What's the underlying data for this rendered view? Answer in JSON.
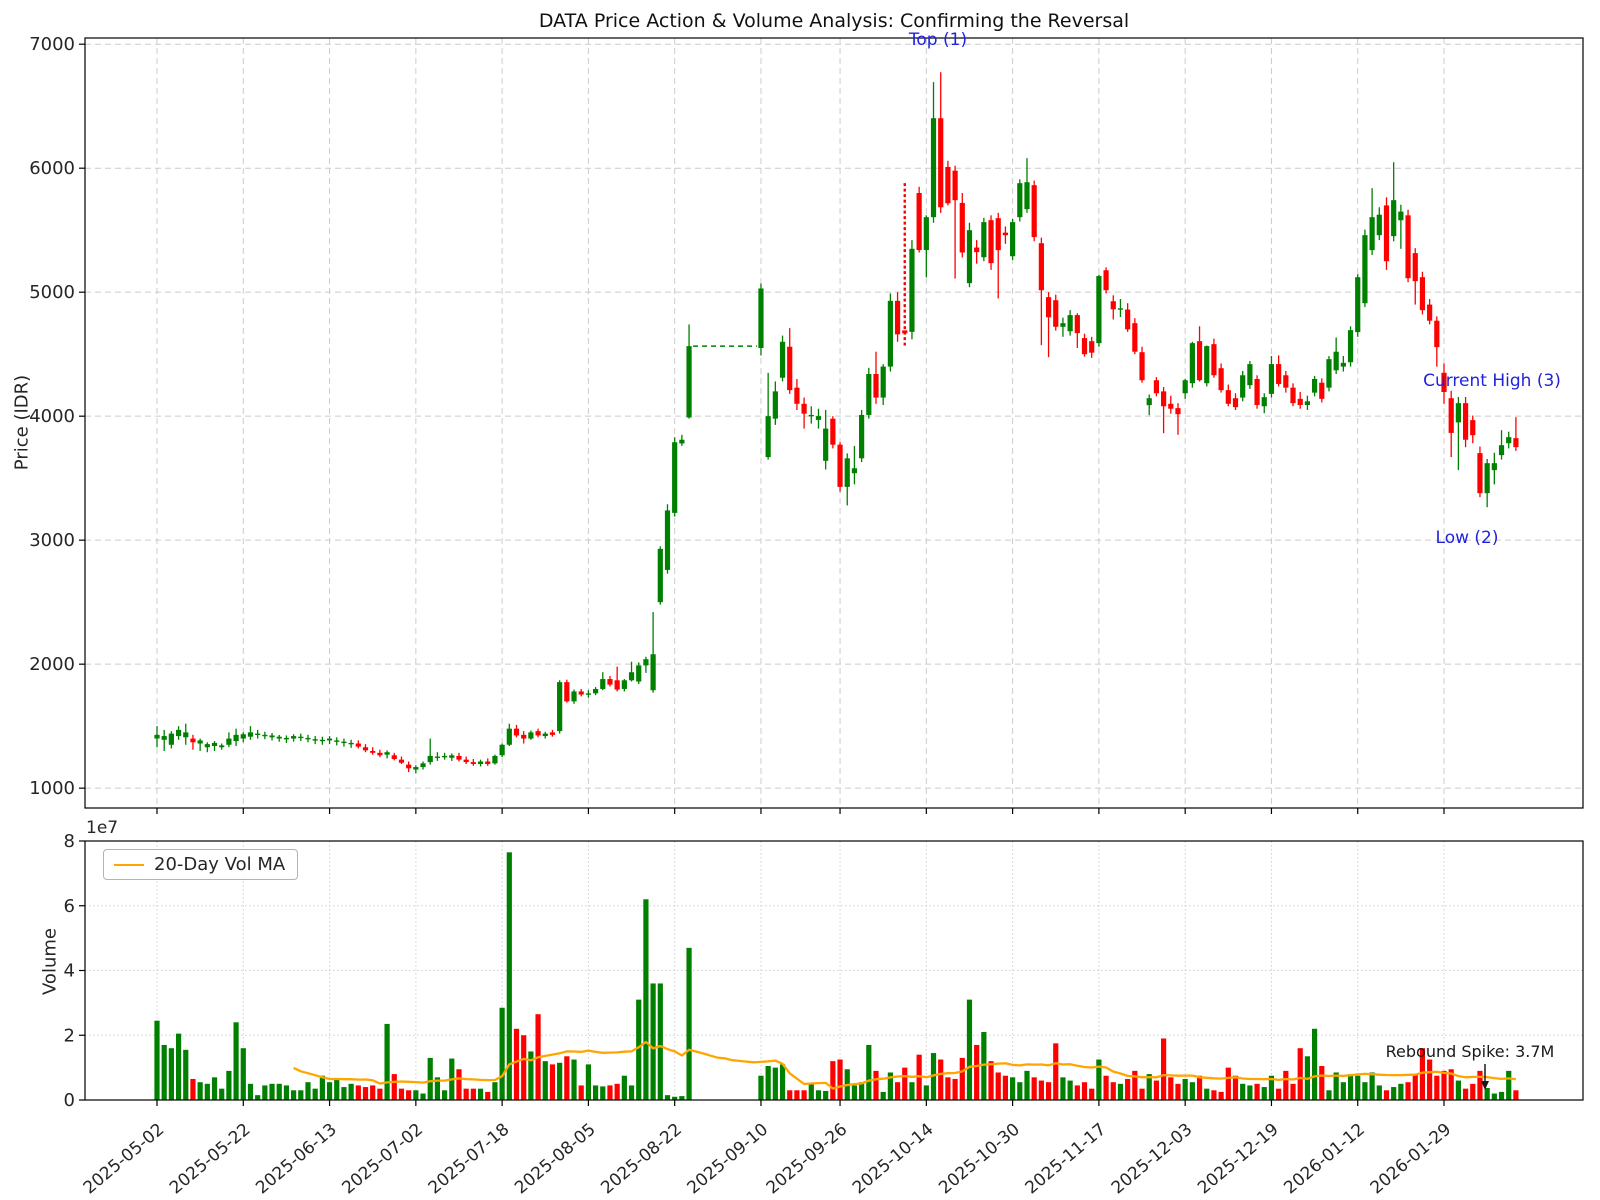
{
  "chart": {
    "title": "DATA Price Action & Volume Analysis: Confirming the Reversal",
    "price_axis": {
      "label": "Price (IDR)",
      "ticks": [
        1000,
        2000,
        3000,
        4000,
        5000,
        6000,
        7000
      ]
    },
    "volume_axis": {
      "label": "Volume",
      "ticks": [
        0,
        2,
        4,
        6,
        8
      ],
      "offset_label": "1e7"
    },
    "x_axis": {
      "tick_labels": [
        "2025-05-02",
        "2025-05-22",
        "2025-06-13",
        "2025-07-02",
        "2025-07-18",
        "2025-08-05",
        "2025-08-22",
        "2025-09-10",
        "2025-09-26",
        "2025-10-14",
        "2025-10-30",
        "2025-11-17",
        "2025-12-03",
        "2025-12-19",
        "2026-01-12",
        "2026-01-29"
      ],
      "tick_indices": [
        0,
        12,
        24,
        36,
        48,
        60,
        72,
        84,
        95,
        107,
        119,
        131,
        143,
        155,
        167,
        179
      ]
    },
    "legend": {
      "label": "20-Day Vol MA"
    },
    "annotations": [
      {
        "id": "top",
        "text": "Top (1)"
      },
      {
        "id": "current-high",
        "text": "Current High (3)"
      },
      {
        "id": "low",
        "text": "Low (2)"
      },
      {
        "id": "rebound",
        "text": "Rebound Spike: 3.7M"
      }
    ],
    "colors": {
      "up": "#008000",
      "down": "#ff0000",
      "volume_ma": "#ffa500",
      "annotation_blue": "#2222dd",
      "text": "#262626",
      "grid": "#cccccc",
      "grid_dotted": "#cfcfcf",
      "spine": "#000000"
    }
  },
  "chart_data": {
    "type": "candlestick+volume",
    "title": "DATA Price Action & Volume Analysis: Confirming the Reversal",
    "ylabel_price": "Price (IDR)",
    "ylabel_volume": "Volume",
    "ylim_price": [
      840,
      7050
    ],
    "ylim_volume_1e7": [
      0,
      8
    ],
    "ma_window": 20,
    "suspension": {
      "from_index": 75,
      "to_index": 83,
      "price": 4565
    },
    "dashed_candle_index": 104,
    "ohlc": [
      [
        1400,
        1500,
        1330,
        1430
      ],
      [
        1390,
        1470,
        1300,
        1420
      ],
      [
        1350,
        1460,
        1320,
        1440
      ],
      [
        1420,
        1500,
        1390,
        1470
      ],
      [
        1410,
        1520,
        1350,
        1450
      ],
      [
        1400,
        1430,
        1310,
        1370
      ],
      [
        1360,
        1400,
        1300,
        1385
      ],
      [
        1330,
        1370,
        1290,
        1355
      ],
      [
        1340,
        1380,
        1300,
        1365
      ],
      [
        1330,
        1360,
        1310,
        1345
      ],
      [
        1350,
        1450,
        1330,
        1400
      ],
      [
        1380,
        1480,
        1340,
        1430
      ],
      [
        1400,
        1450,
        1370,
        1435
      ],
      [
        1415,
        1500,
        1390,
        1450
      ],
      [
        1430,
        1470,
        1400,
        1440
      ],
      [
        1420,
        1455,
        1395,
        1430
      ],
      [
        1410,
        1445,
        1385,
        1425
      ],
      [
        1400,
        1430,
        1375,
        1415
      ],
      [
        1395,
        1425,
        1365,
        1405
      ],
      [
        1400,
        1435,
        1375,
        1420
      ],
      [
        1405,
        1440,
        1380,
        1415
      ],
      [
        1395,
        1430,
        1370,
        1405
      ],
      [
        1385,
        1420,
        1355,
        1395
      ],
      [
        1380,
        1415,
        1350,
        1390
      ],
      [
        1385,
        1420,
        1355,
        1400
      ],
      [
        1375,
        1410,
        1345,
        1385
      ],
      [
        1365,
        1400,
        1335,
        1375
      ],
      [
        1355,
        1390,
        1325,
        1365
      ],
      [
        1360,
        1385,
        1320,
        1335
      ],
      [
        1330,
        1355,
        1290,
        1305
      ],
      [
        1300,
        1330,
        1270,
        1285
      ],
      [
        1285,
        1310,
        1250,
        1265
      ],
      [
        1270,
        1305,
        1240,
        1290
      ],
      [
        1265,
        1285,
        1225,
        1235
      ],
      [
        1230,
        1255,
        1195,
        1205
      ],
      [
        1190,
        1215,
        1130,
        1160
      ],
      [
        1150,
        1185,
        1120,
        1170
      ],
      [
        1170,
        1215,
        1150,
        1200
      ],
      [
        1210,
        1400,
        1190,
        1260
      ],
      [
        1250,
        1290,
        1220,
        1255
      ],
      [
        1255,
        1285,
        1230,
        1260
      ],
      [
        1245,
        1280,
        1220,
        1265
      ],
      [
        1260,
        1285,
        1215,
        1230
      ],
      [
        1230,
        1255,
        1195,
        1210
      ],
      [
        1210,
        1235,
        1180,
        1195
      ],
      [
        1195,
        1230,
        1175,
        1215
      ],
      [
        1215,
        1240,
        1180,
        1195
      ],
      [
        1200,
        1270,
        1190,
        1260
      ],
      [
        1265,
        1360,
        1250,
        1350
      ],
      [
        1350,
        1520,
        1340,
        1480
      ],
      [
        1480,
        1510,
        1410,
        1425
      ],
      [
        1430,
        1460,
        1360,
        1400
      ],
      [
        1400,
        1465,
        1390,
        1450
      ],
      [
        1460,
        1480,
        1410,
        1425
      ],
      [
        1420,
        1455,
        1400,
        1440
      ],
      [
        1450,
        1470,
        1415,
        1430
      ],
      [
        1460,
        1870,
        1440,
        1855
      ],
      [
        1855,
        1875,
        1690,
        1700
      ],
      [
        1700,
        1795,
        1680,
        1780
      ],
      [
        1780,
        1800,
        1740,
        1755
      ],
      [
        1760,
        1790,
        1730,
        1765
      ],
      [
        1765,
        1815,
        1750,
        1800
      ],
      [
        1800,
        1935,
        1790,
        1880
      ],
      [
        1880,
        1905,
        1820,
        1835
      ],
      [
        1870,
        1980,
        1780,
        1795
      ],
      [
        1800,
        1880,
        1780,
        1870
      ],
      [
        1870,
        2020,
        1860,
        1935
      ],
      [
        1860,
        2015,
        1840,
        1990
      ],
      [
        1990,
        2060,
        1930,
        2040
      ],
      [
        1790,
        2420,
        1770,
        2080
      ],
      [
        2500,
        2950,
        2480,
        2930
      ],
      [
        2760,
        3290,
        2730,
        3240
      ],
      [
        3220,
        3830,
        3190,
        3790
      ],
      [
        3780,
        3850,
        3760,
        3810
      ],
      [
        3990,
        4740,
        3980,
        4565
      ],
      null,
      null,
      null,
      null,
      null,
      null,
      null,
      null,
      null,
      [
        4550,
        5070,
        4490,
        5030
      ],
      [
        3670,
        4350,
        3650,
        4000
      ],
      [
        3980,
        4280,
        3930,
        4200
      ],
      [
        4310,
        4650,
        4280,
        4600
      ],
      [
        4560,
        4710,
        4180,
        4210
      ],
      [
        4230,
        4300,
        4050,
        4100
      ],
      [
        4100,
        4150,
        3900,
        4020
      ],
      [
        4000,
        4080,
        3940,
        4010
      ],
      [
        3970,
        4060,
        3900,
        4000
      ],
      [
        3640,
        4050,
        3570,
        3900
      ],
      [
        3980,
        4000,
        3740,
        3770
      ],
      [
        3770,
        3790,
        3390,
        3430
      ],
      [
        3430,
        3700,
        3280,
        3660
      ],
      [
        3540,
        3760,
        3450,
        3580
      ],
      [
        3660,
        4050,
        3630,
        4010
      ],
      [
        4010,
        4390,
        3980,
        4340
      ],
      [
        4340,
        4520,
        4100,
        4150
      ],
      [
        4150,
        4420,
        4090,
        4400
      ],
      [
        4400,
        4990,
        4360,
        4930
      ],
      [
        4930,
        5000,
        4600,
        4660
      ],
      [
        5800,
        5880,
        4570,
        4680
      ],
      [
        4680,
        5420,
        4620,
        5350
      ],
      [
        5800,
        5850,
        5320,
        5340
      ],
      [
        5340,
        5620,
        5120,
        5605
      ],
      [
        5605,
        6694,
        5560,
        6403
      ],
      [
        6403,
        6774,
        5640,
        5685
      ],
      [
        6010,
        6060,
        5700,
        5717
      ],
      [
        5980,
        6020,
        5110,
        5742
      ],
      [
        5720,
        5800,
        5280,
        5320
      ],
      [
        5073,
        5560,
        5040,
        5500
      ],
      [
        5360,
        5420,
        5230,
        5323
      ],
      [
        5282,
        5600,
        5250,
        5565
      ],
      [
        5581,
        5620,
        5180,
        5234
      ],
      [
        5597,
        5640,
        4950,
        5339
      ],
      [
        5480,
        5530,
        5390,
        5460
      ],
      [
        5290,
        5590,
        5260,
        5565
      ],
      [
        5605,
        5910,
        5570,
        5879
      ],
      [
        5670,
        6081,
        5640,
        5887
      ],
      [
        5863,
        5900,
        5410,
        5444
      ],
      [
        5395,
        5440,
        4573,
        5016
      ],
      [
        4960,
        5000,
        4476,
        4798
      ],
      [
        4935,
        4980,
        4690,
        4721
      ],
      [
        4721,
        4795,
        4640,
        4750
      ],
      [
        4685,
        4855,
        4650,
        4815
      ],
      [
        4815,
        4830,
        4550,
        4670
      ],
      [
        4630,
        4665,
        4480,
        4500
      ],
      [
        4605,
        4640,
        4470,
        4512
      ],
      [
        4589,
        5140,
        4560,
        5130
      ],
      [
        5177,
        5200,
        4990,
        5016
      ],
      [
        4927,
        4975,
        4780,
        4862
      ],
      [
        4860,
        4945,
        4800,
        4870
      ],
      [
        4860,
        4911,
        4680,
        4700
      ],
      [
        4750,
        4790,
        4500,
        4520
      ],
      [
        4516,
        4560,
        4270,
        4290
      ],
      [
        4089,
        4175,
        4008,
        4145
      ],
      [
        4290,
        4315,
        4160,
        4185
      ],
      [
        4200,
        4235,
        3863,
        4080
      ],
      [
        4100,
        4165,
        4020,
        4060
      ],
      [
        4065,
        4105,
        3850,
        4016
      ],
      [
        4185,
        4300,
        4140,
        4290
      ],
      [
        4266,
        4600,
        4230,
        4589
      ],
      [
        4605,
        4725,
        4280,
        4290
      ],
      [
        4266,
        4570,
        4240,
        4565
      ],
      [
        4581,
        4625,
        4310,
        4330
      ],
      [
        4387,
        4425,
        4190,
        4210
      ],
      [
        4210,
        4255,
        4080,
        4100
      ],
      [
        4145,
        4185,
        4050,
        4073
      ],
      [
        4150,
        4365,
        4120,
        4330
      ],
      [
        4250,
        4445,
        4220,
        4420
      ],
      [
        4300,
        4330,
        4060,
        4090
      ],
      [
        4080,
        4185,
        4024,
        4153
      ],
      [
        4180,
        4485,
        4150,
        4420
      ],
      [
        4420,
        4490,
        4240,
        4260
      ],
      [
        4330,
        4365,
        4190,
        4230
      ],
      [
        4230,
        4265,
        4080,
        4105
      ],
      [
        4140,
        4195,
        4060,
        4090
      ],
      [
        4090,
        4165,
        4050,
        4120
      ],
      [
        4190,
        4325,
        4160,
        4300
      ],
      [
        4270,
        4305,
        4110,
        4140
      ],
      [
        4230,
        4485,
        4200,
        4460
      ],
      [
        4370,
        4635,
        4340,
        4520
      ],
      [
        4400,
        4485,
        4360,
        4430
      ],
      [
        4435,
        4725,
        4400,
        4694
      ],
      [
        4678,
        5145,
        4640,
        5121
      ],
      [
        4911,
        5505,
        4880,
        5460
      ],
      [
        5339,
        5839,
        5300,
        5605
      ],
      [
        5460,
        5685,
        5420,
        5625
      ],
      [
        5700,
        5765,
        5180,
        5250
      ],
      [
        5452,
        6048,
        5410,
        5742
      ],
      [
        5580,
        5705,
        5350,
        5650
      ],
      [
        5620,
        5665,
        5080,
        5113
      ],
      [
        5315,
        5355,
        4900,
        5089
      ],
      [
        5121,
        5165,
        4820,
        4855
      ],
      [
        4900,
        4945,
        4740,
        4770
      ],
      [
        4770,
        4805,
        4400,
        4557
      ],
      [
        4350,
        4425,
        4100,
        4195
      ],
      [
        4145,
        4205,
        3670,
        3865
      ],
      [
        3950,
        4155,
        3565,
        4105
      ],
      [
        4105,
        4155,
        3750,
        3810
      ],
      [
        3968,
        4005,
        3782,
        3847
      ],
      [
        3702,
        3755,
        3347,
        3379
      ],
      [
        3379,
        3655,
        3266,
        3621
      ],
      [
        3565,
        3705,
        3450,
        3621
      ],
      [
        3686,
        3887,
        3650,
        3766
      ],
      [
        3782,
        3875,
        3740,
        3831
      ],
      [
        3823,
        3992,
        3720,
        3750
      ]
    ],
    "volumes_1e7": [
      2.45,
      1.7,
      1.6,
      2.05,
      1.55,
      0.65,
      0.55,
      0.5,
      0.7,
      0.35,
      0.9,
      2.4,
      1.6,
      0.5,
      0.15,
      0.45,
      0.5,
      0.5,
      0.45,
      0.3,
      0.3,
      0.55,
      0.35,
      0.75,
      0.55,
      0.65,
      0.4,
      0.5,
      0.45,
      0.4,
      0.45,
      0.35,
      2.35,
      0.8,
      0.35,
      0.3,
      0.3,
      0.2,
      1.3,
      0.7,
      0.3,
      1.28,
      0.95,
      0.35,
      0.35,
      0.35,
      0.25,
      0.55,
      2.85,
      7.65,
      2.2,
      2.0,
      1.5,
      2.65,
      1.2,
      1.1,
      1.15,
      1.35,
      1.25,
      0.45,
      1.1,
      0.45,
      0.42,
      0.45,
      0.5,
      0.75,
      0.45,
      3.1,
      6.2,
      3.6,
      3.6,
      0.15,
      0.1,
      0.12,
      4.7,
      0,
      0,
      0,
      0,
      0,
      0,
      0,
      0,
      0,
      0.75,
      1.05,
      1.0,
      1.1,
      0.3,
      0.3,
      0.3,
      0.5,
      0.3,
      0.28,
      1.2,
      1.25,
      0.95,
      0.45,
      0.55,
      1.7,
      0.9,
      0.25,
      0.85,
      0.55,
      1.0,
      0.55,
      1.4,
      0.45,
      1.45,
      1.25,
      0.7,
      0.65,
      1.3,
      3.1,
      1.7,
      2.1,
      1.2,
      0.85,
      0.75,
      0.7,
      0.55,
      0.9,
      0.7,
      0.6,
      0.55,
      1.75,
      0.7,
      0.6,
      0.45,
      0.55,
      0.35,
      1.25,
      0.75,
      0.55,
      0.5,
      0.65,
      0.9,
      0.35,
      0.8,
      0.6,
      1.9,
      0.7,
      0.5,
      0.65,
      0.55,
      0.75,
      0.35,
      0.3,
      0.25,
      1.0,
      0.75,
      0.5,
      0.45,
      0.5,
      0.4,
      0.75,
      0.35,
      0.9,
      0.5,
      1.6,
      1.35,
      2.2,
      1.05,
      0.3,
      0.85,
      0.55,
      0.8,
      0.75,
      0.55,
      0.85,
      0.45,
      0.3,
      0.4,
      0.5,
      0.55,
      0.8,
      1.6,
      1.25,
      0.75,
      0.9,
      0.95,
      0.6,
      0.35,
      0.5,
      0.9,
      0.37,
      0.2,
      0.25,
      0.9,
      0.3
    ]
  }
}
